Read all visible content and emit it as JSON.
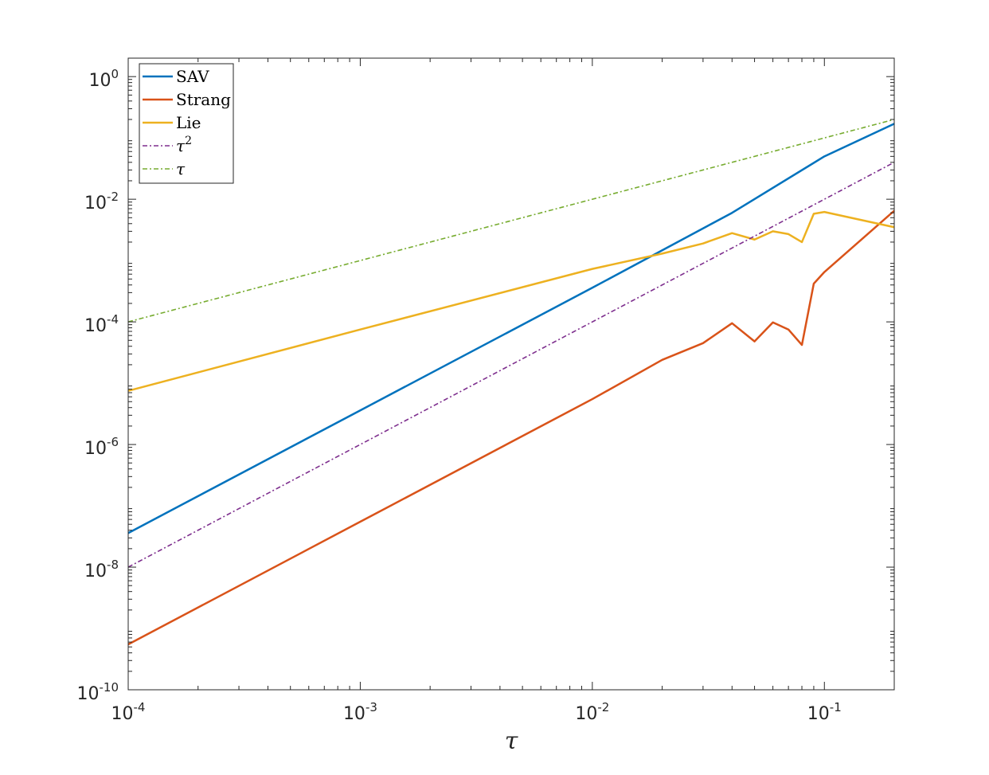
{
  "chart_data": {
    "type": "line",
    "title": "",
    "xlabel": "τ",
    "ylabel": "",
    "xscale": "log",
    "yscale": "log",
    "xlim": [
      0.0001,
      0.2
    ],
    "ylim": [
      1e-10,
      2
    ],
    "grid": false,
    "legend_position": "top-left",
    "x_ticks": [
      {
        "value": 0.0001,
        "base": "10",
        "exp": "-4"
      },
      {
        "value": 0.001,
        "base": "10",
        "exp": "-3"
      },
      {
        "value": 0.01,
        "base": "10",
        "exp": "-2"
      },
      {
        "value": 0.1,
        "base": "10",
        "exp": "-1"
      }
    ],
    "y_ticks": [
      {
        "value": 1e-10,
        "base": "10",
        "exp": "-10"
      },
      {
        "value": 1e-08,
        "base": "10",
        "exp": "-8"
      },
      {
        "value": 1e-06,
        "base": "10",
        "exp": "-6"
      },
      {
        "value": 0.0001,
        "base": "10",
        "exp": "-4"
      },
      {
        "value": 0.01,
        "base": "10",
        "exp": "-2"
      },
      {
        "value": 1,
        "base": "10",
        "exp": "0"
      }
    ],
    "series": [
      {
        "name": "SAV",
        "label_base": "SAV",
        "label_sup": "",
        "color": "#0072BD",
        "style": "solid",
        "points": [
          [
            0.0001,
            3.6e-08
          ],
          [
            0.001,
            3.6e-06
          ],
          [
            0.01,
            0.00036
          ],
          [
            0.04,
            0.006
          ],
          [
            0.1,
            0.05
          ],
          [
            0.2,
            0.17
          ]
        ]
      },
      {
        "name": "Strang",
        "label_base": "Strang",
        "label_sup": "",
        "color": "#D95319",
        "style": "solid",
        "points": [
          [
            0.0001,
            5.5e-10
          ],
          [
            0.001,
            5.5e-08
          ],
          [
            0.01,
            5.5e-06
          ],
          [
            0.02,
            2.4e-05
          ],
          [
            0.03,
            4.5e-05
          ],
          [
            0.04,
            9.5e-05
          ],
          [
            0.05,
            4.8e-05
          ],
          [
            0.06,
            9.8e-05
          ],
          [
            0.07,
            7.5e-05
          ],
          [
            0.08,
            4.2e-05
          ],
          [
            0.09,
            0.00042
          ],
          [
            0.1,
            0.00065
          ],
          [
            0.2,
            0.0065
          ]
        ]
      },
      {
        "name": "Lie",
        "label_base": "Lie",
        "label_sup": "",
        "color": "#EDB120",
        "style": "solid",
        "points": [
          [
            0.0001,
            7.5e-06
          ],
          [
            0.001,
            7.5e-05
          ],
          [
            0.01,
            0.00073
          ],
          [
            0.02,
            0.0013
          ],
          [
            0.03,
            0.0019
          ],
          [
            0.04,
            0.0028
          ],
          [
            0.05,
            0.0022
          ],
          [
            0.06,
            0.003
          ],
          [
            0.07,
            0.0027
          ],
          [
            0.08,
            0.002
          ],
          [
            0.09,
            0.0058
          ],
          [
            0.1,
            0.0062
          ],
          [
            0.2,
            0.0035
          ]
        ]
      },
      {
        "name": "τ^2",
        "label_base": "τ",
        "label_sup": "2",
        "color": "#7E2F8E",
        "style": "dashdot",
        "points": [
          [
            0.0001,
            1e-08
          ],
          [
            0.2,
            0.04
          ]
        ]
      },
      {
        "name": "τ",
        "label_base": "τ",
        "label_sup": "",
        "color": "#77AC30",
        "style": "dashdot",
        "points": [
          [
            0.0001,
            0.0001
          ],
          [
            0.2,
            0.2
          ]
        ]
      }
    ]
  }
}
